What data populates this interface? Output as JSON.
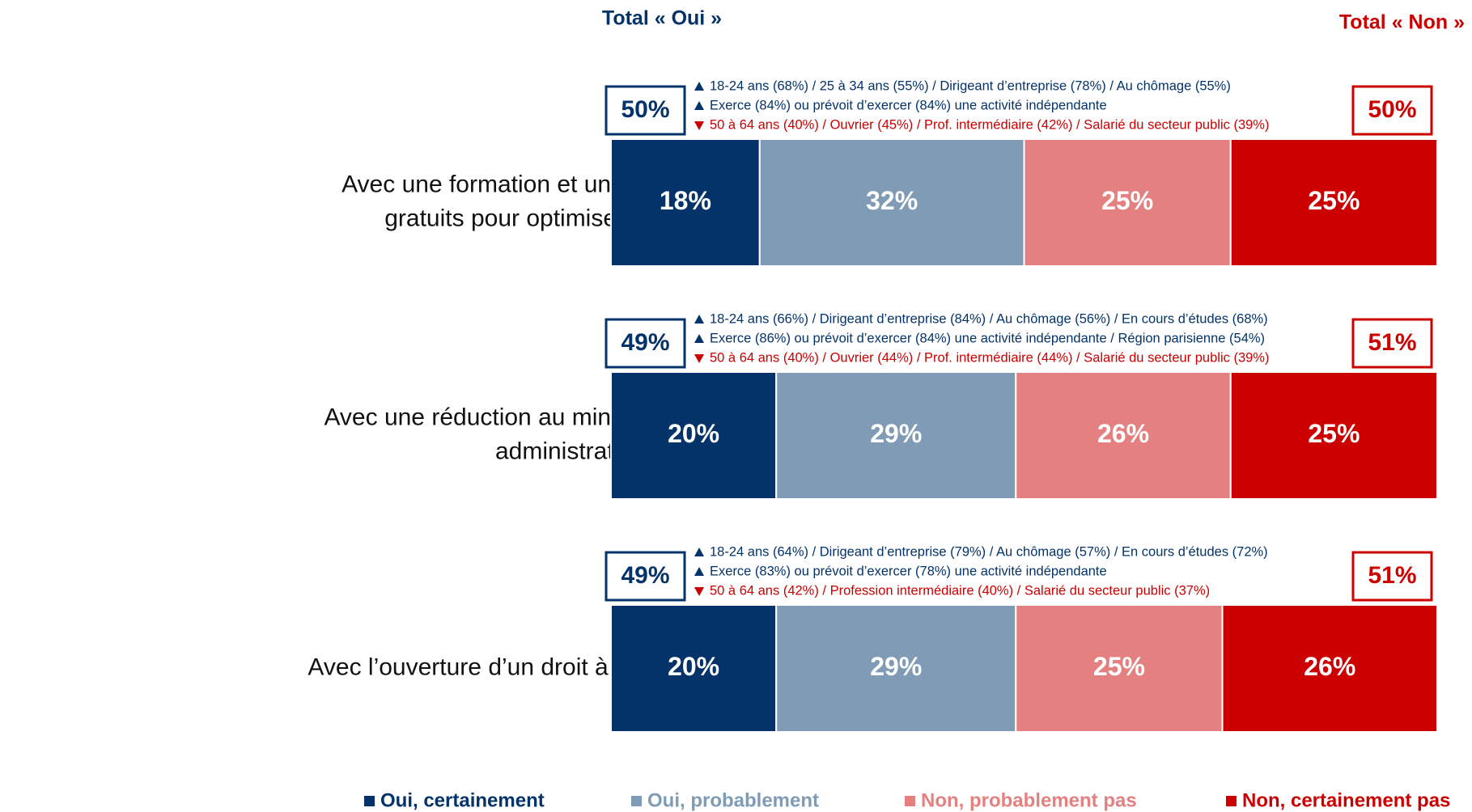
{
  "chart_data": {
    "type": "bar",
    "orientation": "horizontal",
    "stacked": true,
    "xlim": [
      0,
      100
    ],
    "categories": [
      [
        "Avec une formation et un accompagnement",
        "gratuits pour optimiser votre activité"
      ],
      [
        "Avec une réduction au minimum des formalités",
        "administratives"
      ],
      [
        "Avec l’ouverture d’un droit à l’assurance chômage"
      ]
    ],
    "series": [
      {
        "name": "Oui, certainement",
        "color": "#04336a",
        "values": [
          18,
          20,
          20
        ],
        "value_labels": [
          "18%",
          "20%",
          "20%"
        ]
      },
      {
        "name": "Oui, probablement",
        "color": "#7f9bb5",
        "values": [
          32,
          29,
          29
        ],
        "value_labels": [
          "32%",
          "29%",
          "29%"
        ]
      },
      {
        "name": "Non, probablement pas",
        "color": "#e58080",
        "values": [
          25,
          26,
          25
        ],
        "value_labels": [
          "25%",
          "26%",
          "25%"
        ]
      },
      {
        "name": "Non, certainement pas",
        "color": "#cc0000",
        "values": [
          25,
          25,
          26
        ],
        "value_labels": [
          "25%",
          "25%",
          "26%"
        ]
      }
    ],
    "total_yes": {
      "label": "Total « Oui »",
      "color": "#04336a",
      "values": [
        50,
        49,
        49
      ],
      "value_labels": [
        "50%",
        "49%",
        "49%"
      ]
    },
    "total_no": {
      "label": "Total  « Non »",
      "color": "#cc0000",
      "values": [
        50,
        51,
        51
      ],
      "value_labels": [
        "50%",
        "51%",
        "51%"
      ]
    },
    "annotations": [
      [
        {
          "direction": "up",
          "text": "18-24 ans (68%) / 25 à 34 ans (55%) / Dirigeant d’entreprise (78%) / Au chômage (55%)"
        },
        {
          "direction": "up",
          "text": "Exerce (84%) ou prévoit d’exercer (84%)  une activité indépendante"
        },
        {
          "direction": "down",
          "text": "50 à 64 ans (40%) / Ouvrier (45%) /  Prof. intermédiaire (42%) / Salarié du secteur public (39%)"
        }
      ],
      [
        {
          "direction": "up",
          "text": "18-24 ans (66%) / Dirigeant d’entreprise (84%) / Au chômage (56%) / En cours d’études (68%)"
        },
        {
          "direction": "up",
          "text": "Exerce (86%) ou prévoit d’exercer (84%)  une activité indépendante / Région parisienne (54%)"
        },
        {
          "direction": "down",
          "text": "50 à 64 ans (40%) / Ouvrier (44%) / Prof. intermédiaire (44%) / Salarié du secteur public (39%)"
        }
      ],
      [
        {
          "direction": "up",
          "text": "18-24 ans (64%) / Dirigeant d’entreprise (79%) / Au chômage (57%) / En cours d’études (72%)"
        },
        {
          "direction": "up",
          "text": "Exerce (83%) ou prévoit d’exercer (78%)  une activité indépendante"
        },
        {
          "direction": "down",
          "text": "50 à 64 ans (42%) / Profession intermédiaire (40%) / Salarié du secteur public (37%)"
        }
      ]
    ]
  }
}
